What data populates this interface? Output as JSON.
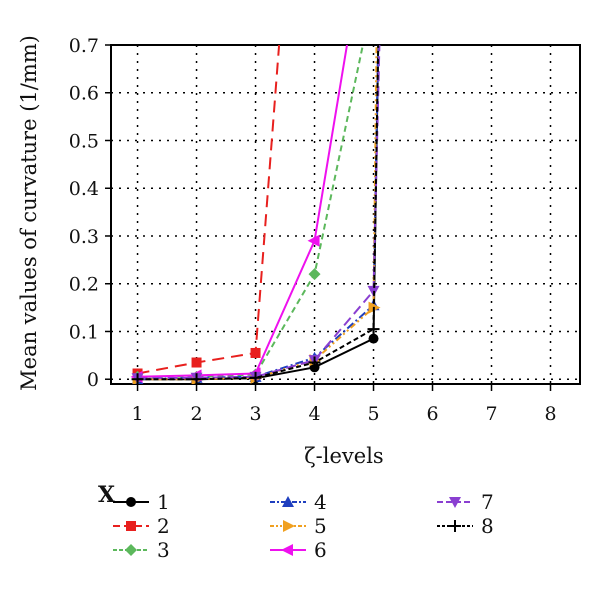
{
  "chart_data": {
    "type": "line",
    "xlabel": "ζ-levels",
    "ylabel": "Mean values of curvature (1/mm)",
    "x_ticks": [
      "1",
      "2",
      "3",
      "4",
      "5",
      "6",
      "7",
      "8"
    ],
    "y_ticks": [
      "0",
      "0.1",
      "0.2",
      "0.3",
      "0.4",
      "0.5",
      "0.6",
      "0.7"
    ],
    "xlim": [
      0.55,
      8.5
    ],
    "ylim": [
      -0.01,
      0.7
    ],
    "grid": true,
    "legend_title": "X",
    "legend_position": "bottom",
    "series": [
      {
        "name": "1",
        "color": "#000000",
        "dash": "",
        "marker": "circle",
        "x": [
          1,
          2,
          3,
          4,
          5,
          5.08
        ],
        "y": [
          0.0,
          0.0,
          0.002,
          0.025,
          0.085,
          0.7
        ]
      },
      {
        "name": "2",
        "color": "#e8201e",
        "dash": "12,7",
        "marker": "square",
        "x": [
          1,
          2,
          3,
          3.4
        ],
        "y": [
          0.012,
          0.035,
          0.055,
          0.7
        ]
      },
      {
        "name": "3",
        "color": "#5cb85c",
        "dash": "6,4",
        "marker": "diamond",
        "x": [
          1,
          2,
          3,
          4,
          4.82
        ],
        "y": [
          0.005,
          0.005,
          0.01,
          0.22,
          0.7
        ]
      },
      {
        "name": "4",
        "color": "#1f3fbf",
        "dash": "8,3,2,3",
        "marker": "triangle-up",
        "x": [
          1,
          2,
          3,
          4,
          5,
          5.08
        ],
        "y": [
          0.0,
          0.003,
          0.005,
          0.045,
          0.155,
          0.7
        ]
      },
      {
        "name": "5",
        "color": "#f0a020",
        "dash": "6,3,2,3,2,3",
        "marker": "triangle-right",
        "x": [
          1,
          2,
          3,
          4,
          5,
          5.05
        ],
        "y": [
          0.0,
          0.0,
          0.003,
          0.04,
          0.15,
          0.7
        ]
      },
      {
        "name": "6",
        "color": "#ee11ee",
        "dash": "",
        "marker": "triangle-left",
        "x": [
          1,
          2,
          3,
          4,
          4.55
        ],
        "y": [
          0.005,
          0.008,
          0.012,
          0.29,
          0.7
        ]
      },
      {
        "name": "7",
        "color": "#8a3fd1",
        "dash": "10,5",
        "marker": "triangle-down",
        "x": [
          1,
          2,
          3,
          4,
          5,
          5.1
        ],
        "y": [
          0.002,
          0.003,
          0.005,
          0.04,
          0.185,
          0.7
        ]
      },
      {
        "name": "8",
        "color": "#000000",
        "dash": "5,3",
        "marker": "plus",
        "x": [
          1,
          2,
          3,
          4,
          5,
          5.08
        ],
        "y": [
          0.0,
          0.0,
          0.003,
          0.035,
          0.105,
          0.7
        ]
      }
    ]
  }
}
